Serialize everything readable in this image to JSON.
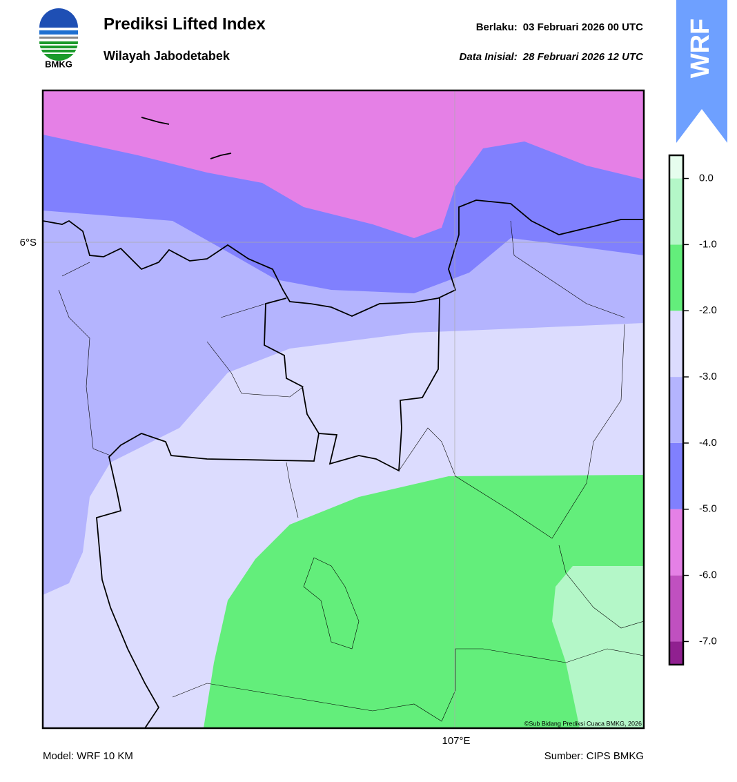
{
  "header": {
    "title": "Prediksi Lifted Index",
    "subtitle": "Wilayah Jabodetabek",
    "valid_label": "Berlaku:",
    "valid_value": "03 Februari 2026 00 UTC",
    "init_label": "Data Inisial:",
    "init_value": "28 Februari 2026 12 UTC",
    "logo_text": "BMKG",
    "badge": "WRF"
  },
  "map": {
    "lat_label": "6°S",
    "lon_label": "107°E",
    "credit": "©Sub Bidang Prediksi Cuaca BMKG, 2026"
  },
  "colorbar": {
    "levels": [
      -7.35,
      -7,
      -6,
      -5,
      -4,
      -3,
      -2,
      -1,
      0,
      0.35
    ],
    "colors": [
      "#902090",
      "#c050c0",
      "#e580e6",
      "#8080fe",
      "#b4b4fe",
      "#dcdcfe",
      "#63ee7b",
      "#b4f7c8",
      "#e6fdee"
    ],
    "ticks": [
      {
        "value": 0,
        "label": "0.0"
      },
      {
        "value": -1,
        "label": "-1.0"
      },
      {
        "value": -2,
        "label": "-2.0"
      },
      {
        "value": -3,
        "label": "-3.0"
      },
      {
        "value": -4,
        "label": "-4.0"
      },
      {
        "value": -5,
        "label": "-5.0"
      },
      {
        "value": -6,
        "label": "-6.0"
      },
      {
        "value": -7,
        "label": "-7.0"
      }
    ]
  },
  "footer": {
    "model": "Model: WRF 10 KM",
    "source": "Sumber: CIPS BMKG"
  }
}
